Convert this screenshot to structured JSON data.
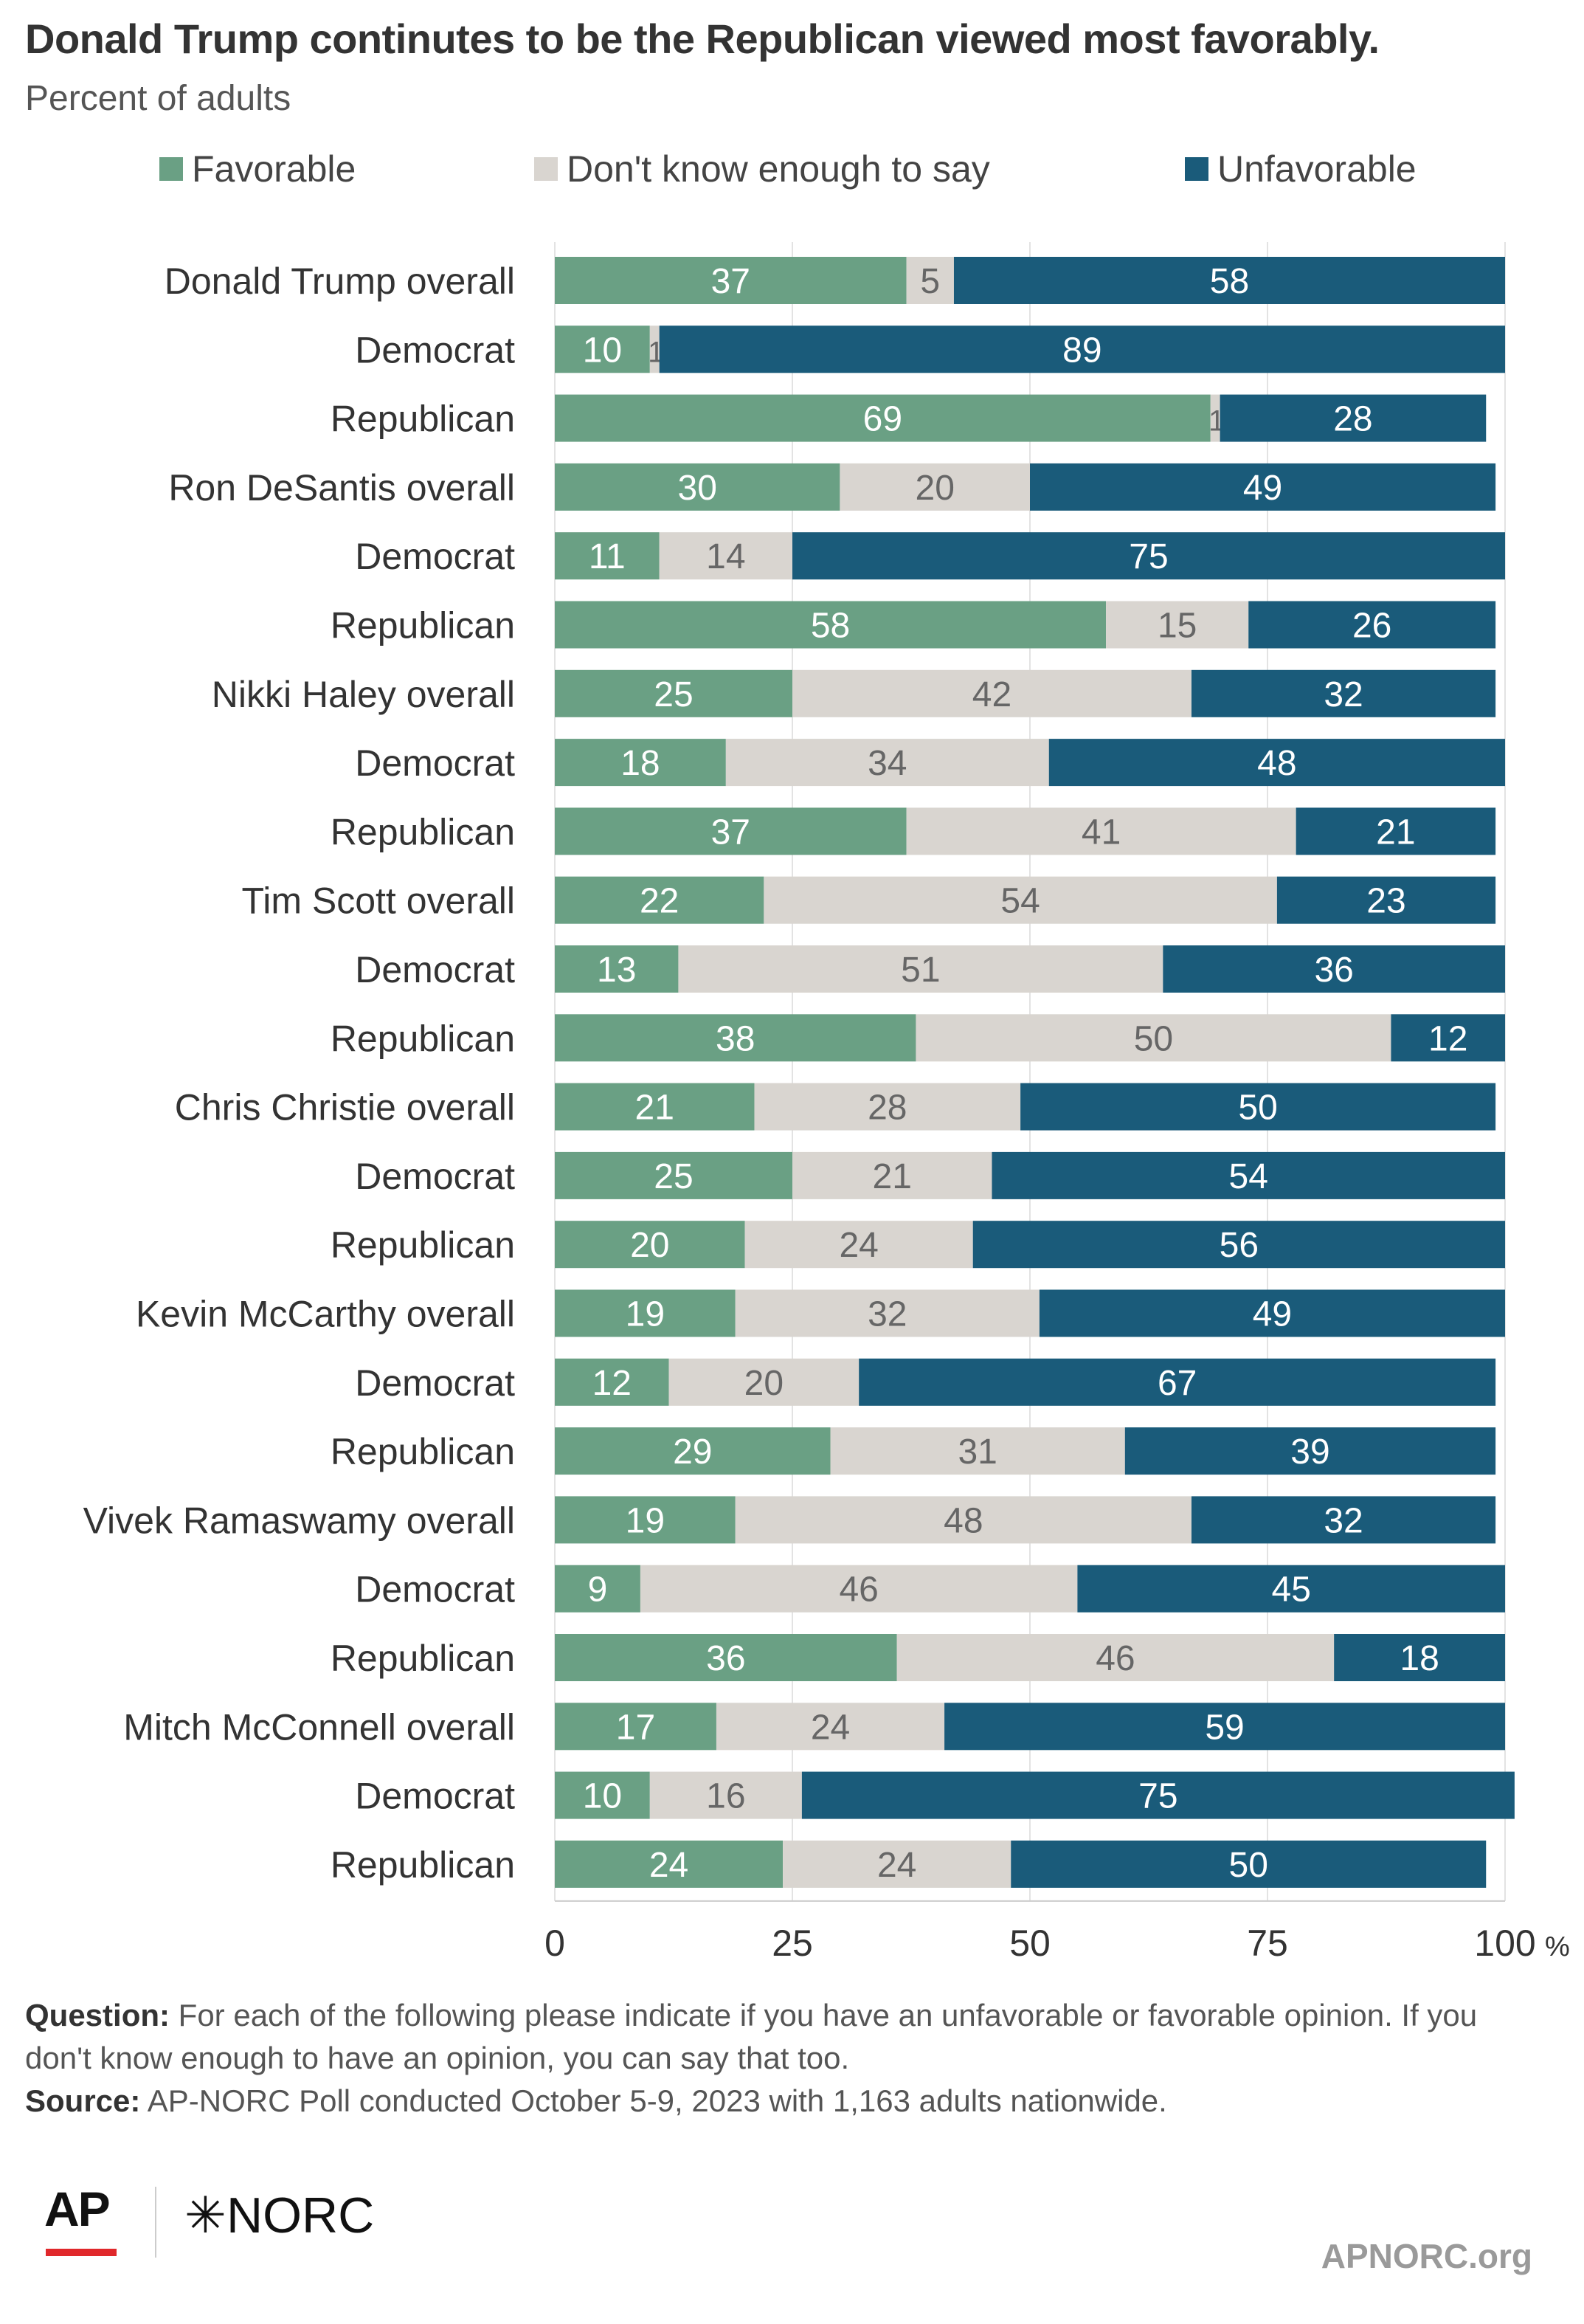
{
  "title": "Donald Trump continutes to be the Republican viewed most favorably.",
  "subtitle": "Percent of adults",
  "legend": [
    {
      "label": "Favorable",
      "color": "#6aa084"
    },
    {
      "label": "Don't know enough to say",
      "color": "#d9d5d0"
    },
    {
      "label": "Unfavorable",
      "color": "#1a5b7a"
    }
  ],
  "chart_data": {
    "type": "bar",
    "orientation": "horizontal",
    "stacked": true,
    "categories": [
      "Donald Trump overall",
      "Democrat",
      "Republican",
      "Ron DeSantis overall",
      "Democrat",
      "Republican",
      "Nikki Haley overall",
      "Democrat",
      "Republican",
      "Tim Scott overall",
      "Democrat",
      "Republican",
      "Chris Christie overall",
      "Democrat",
      "Republican",
      "Kevin McCarthy overall",
      "Democrat",
      "Republican",
      "Vivek Ramaswamy overall",
      "Democrat",
      "Republican",
      "Mitch McConnell overall",
      "Democrat",
      "Republican"
    ],
    "series": [
      {
        "name": "Favorable",
        "color": "#6aa084",
        "values": [
          37,
          10,
          69,
          30,
          11,
          58,
          25,
          18,
          37,
          22,
          13,
          38,
          21,
          25,
          20,
          19,
          12,
          29,
          19,
          9,
          36,
          17,
          10,
          24
        ]
      },
      {
        "name": "Don't know enough to say",
        "color": "#d9d5d0",
        "values": [
          5,
          1,
          1,
          20,
          14,
          15,
          42,
          34,
          41,
          54,
          51,
          50,
          28,
          21,
          24,
          32,
          20,
          31,
          48,
          46,
          46,
          24,
          16,
          24
        ]
      },
      {
        "name": "Unfavorable",
        "color": "#1a5b7a",
        "values": [
          58,
          89,
          28,
          49,
          75,
          26,
          32,
          48,
          21,
          23,
          36,
          12,
          50,
          54,
          56,
          49,
          67,
          39,
          32,
          45,
          18,
          59,
          75,
          50
        ]
      }
    ],
    "xlim": [
      0,
      100
    ],
    "x_ticks": [
      "0",
      "25",
      "50",
      "75",
      "100"
    ],
    "x_unit": "%",
    "grid": true,
    "legend_position": "top"
  },
  "notes": {
    "question_label": "Question:",
    "question_text": "For each of the following please indicate if you have an unfavorable or favorable opinion. If you don't know enough to have an opinion, you can say that too.",
    "source_label": "Source:",
    "source_text": "AP-NORC Poll conducted October 5-9, 2023 with 1,163 adults nationwide."
  },
  "logos": {
    "ap": "AP",
    "norc": "✳NORC"
  },
  "site": "APNORC.org"
}
